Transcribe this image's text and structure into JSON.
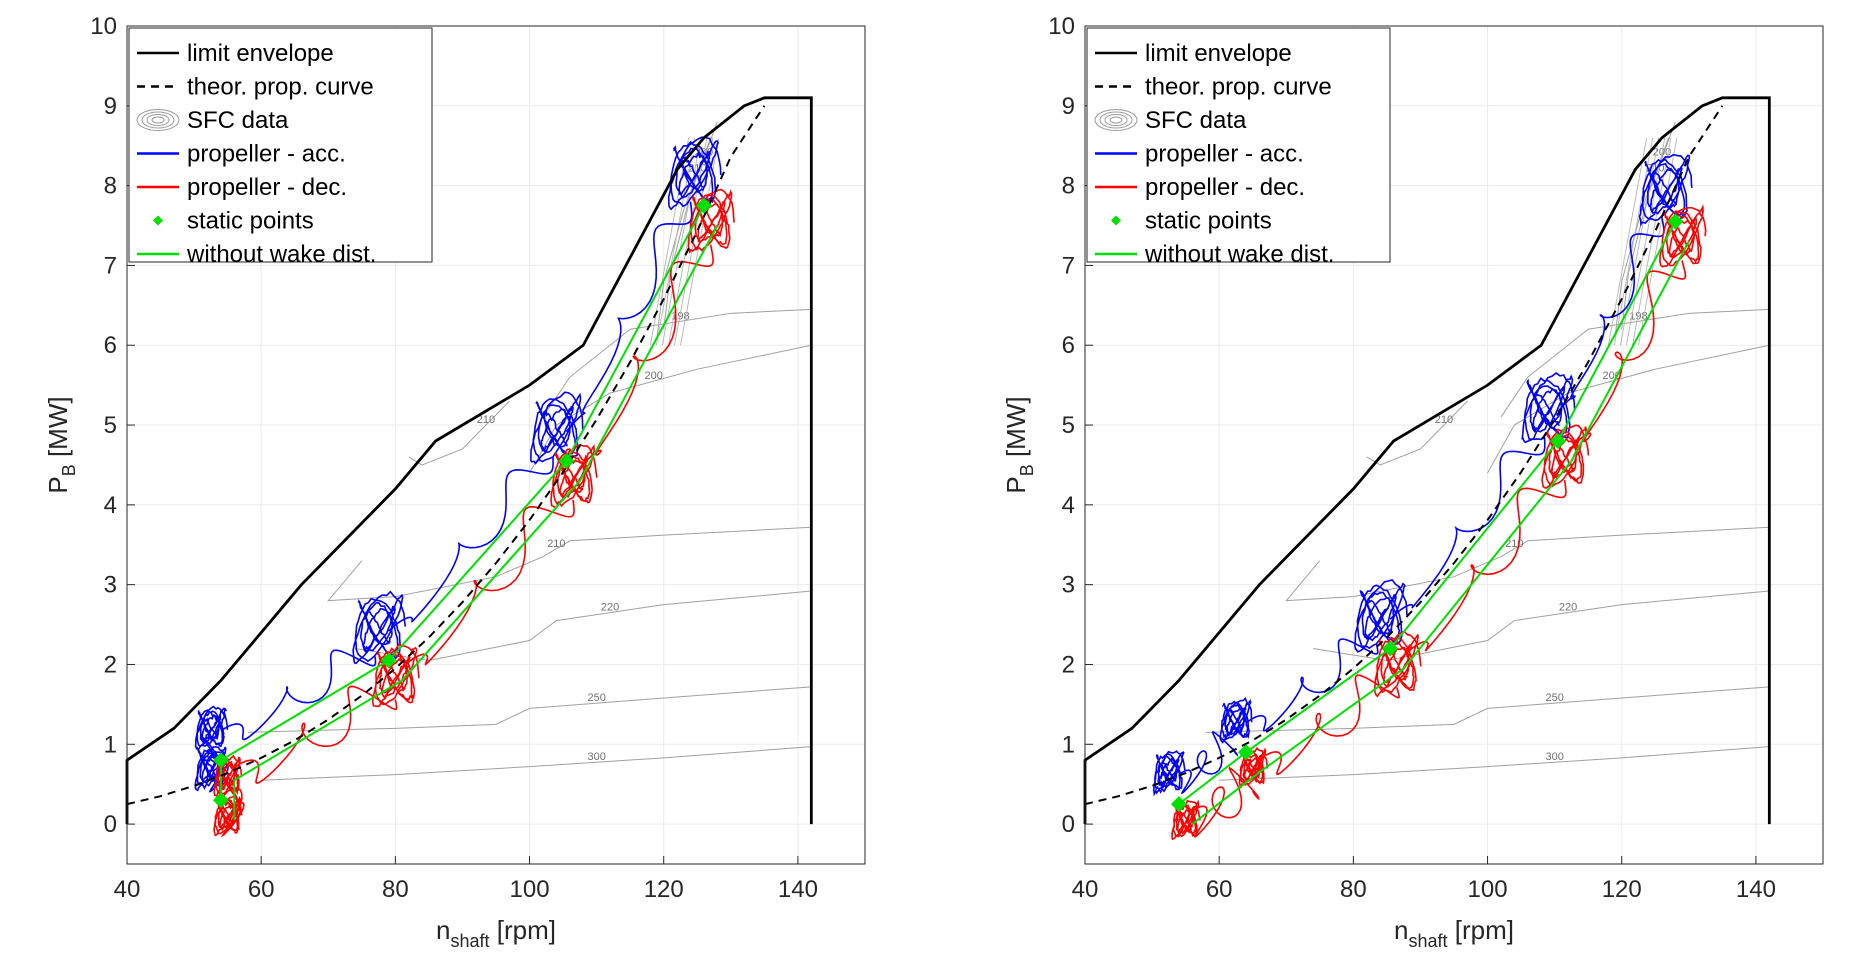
{
  "chart_data": [
    {
      "type": "line",
      "xlabel": "n",
      "xlabel_sub": "shaft",
      "xlabel_unit": "[rpm]",
      "ylabel": "P",
      "ylabel_sub": "B",
      "ylabel_unit": "[MW]",
      "xlim": [
        40,
        150
      ],
      "ylim": [
        -0.5,
        10
      ],
      "xticks": [
        40,
        60,
        80,
        100,
        120,
        140
      ],
      "yticks": [
        0,
        1,
        2,
        3,
        4,
        5,
        6,
        7,
        8,
        9,
        10
      ],
      "grid": true,
      "legend_position": "top-left",
      "legend": [
        {
          "label": "limit envelope",
          "style": "solid",
          "color": "#000000"
        },
        {
          "label": "theor. prop. curve",
          "style": "dashed",
          "color": "#000000"
        },
        {
          "label": "SFC data",
          "style": "contour",
          "color": "#9a9a9a"
        },
        {
          "label": "propeller - acc.",
          "style": "solid",
          "color": "#0000ff"
        },
        {
          "label": "propeller - dec.",
          "style": "solid",
          "color": "#ff0000"
        },
        {
          "label": "static points",
          "style": "marker",
          "color": "#00e000"
        },
        {
          "label": "without wake dist.",
          "style": "solid",
          "color": "#00e000"
        }
      ],
      "limit_envelope": {
        "x": [
          40,
          40,
          47,
          54,
          60,
          66,
          73,
          80,
          86,
          100,
          108,
          122,
          126,
          132,
          135,
          142,
          142
        ],
        "y": [
          0,
          0.8,
          1.2,
          1.8,
          2.4,
          3.0,
          3.6,
          4.2,
          4.8,
          5.5,
          6.0,
          8.2,
          8.6,
          9.0,
          9.1,
          9.1,
          0
        ]
      },
      "prop_curve": {
        "x": [
          40,
          45,
          50,
          55,
          60,
          65,
          70,
          75,
          80,
          85,
          90,
          95,
          100,
          105,
          110,
          115,
          120,
          125,
          130,
          135
        ],
        "y": [
          0.25,
          0.35,
          0.48,
          0.64,
          0.83,
          1.05,
          1.31,
          1.61,
          1.95,
          2.34,
          2.78,
          3.27,
          3.81,
          4.41,
          5.07,
          5.79,
          6.58,
          7.43,
          8.36,
          9.0
        ]
      },
      "sfc_contours": [
        {
          "label": "300",
          "x": [
            60,
            80,
            100,
            120,
            142
          ],
          "y": [
            0.55,
            0.62,
            0.72,
            0.83,
            0.97
          ]
        },
        {
          "label": "250",
          "x": [
            58,
            80,
            95,
            100,
            120,
            142
          ],
          "y": [
            1.15,
            1.2,
            1.25,
            1.45,
            1.58,
            1.72
          ]
        },
        {
          "label": "220",
          "x": [
            74,
            85,
            100,
            104,
            120,
            142
          ],
          "y": [
            2.2,
            2.05,
            2.3,
            2.55,
            2.75,
            2.92
          ]
        },
        {
          "label": "210",
          "x": [
            75,
            70,
            80,
            95,
            102,
            106,
            120,
            142
          ],
          "y": [
            3.3,
            2.8,
            2.85,
            3.1,
            3.35,
            3.55,
            3.62,
            3.72
          ]
        },
        {
          "label": "200",
          "x": [
            100,
            104,
            112,
            125,
            142
          ],
          "y": [
            4.4,
            5.0,
            5.4,
            5.7,
            6.0
          ]
        },
        {
          "label": "198",
          "x": [
            102,
            106,
            115,
            130,
            142
          ],
          "y": [
            5.1,
            5.6,
            6.2,
            6.4,
            6.45
          ]
        },
        {
          "label": "210",
          "x": [
            82,
            84,
            90,
            97
          ],
          "y": [
            4.6,
            4.5,
            4.7,
            5.3
          ]
        },
        {
          "label": "200",
          "x": [
            120,
            121,
            124,
            128
          ],
          "y": [
            6.2,
            6.9,
            7.9,
            8.8
          ]
        },
        {
          "label": "210",
          "x": [
            119,
            120,
            123,
            127
          ],
          "y": [
            6.1,
            6.8,
            7.7,
            8.6
          ]
        }
      ],
      "static_points": {
        "x": [
          54,
          54,
          79,
          105.5,
          126
        ],
        "y": [
          0.3,
          0.8,
          2.05,
          4.55,
          7.75
        ]
      }
    },
    {
      "type": "line",
      "xlabel": "n",
      "xlabel_sub": "shaft",
      "xlabel_unit": "[rpm]",
      "ylabel": "P",
      "ylabel_sub": "B",
      "ylabel_unit": "[MW]",
      "xlim": [
        40,
        150
      ],
      "ylim": [
        -0.5,
        10
      ],
      "xticks": [
        40,
        60,
        80,
        100,
        120,
        140
      ],
      "yticks": [
        0,
        1,
        2,
        3,
        4,
        5,
        6,
        7,
        8,
        9,
        10
      ],
      "grid": true,
      "legend_position": "top-left",
      "legend": [
        {
          "label": "limit envelope",
          "style": "solid",
          "color": "#000000"
        },
        {
          "label": "theor. prop. curve",
          "style": "dashed",
          "color": "#000000"
        },
        {
          "label": "SFC data",
          "style": "contour",
          "color": "#9a9a9a"
        },
        {
          "label": "propeller - acc.",
          "style": "solid",
          "color": "#0000ff"
        },
        {
          "label": "propeller - dec.",
          "style": "solid",
          "color": "#ff0000"
        },
        {
          "label": "static points",
          "style": "marker",
          "color": "#00e000"
        },
        {
          "label": "without wake dist.",
          "style": "solid",
          "color": "#00e000"
        }
      ],
      "limit_envelope": {
        "x": [
          40,
          40,
          47,
          54,
          60,
          66,
          73,
          80,
          86,
          100,
          108,
          122,
          126,
          132,
          135,
          142,
          142
        ],
        "y": [
          0,
          0.8,
          1.2,
          1.8,
          2.4,
          3.0,
          3.6,
          4.2,
          4.8,
          5.5,
          6.0,
          8.2,
          8.6,
          9.0,
          9.1,
          9.1,
          0
        ]
      },
      "prop_curve": {
        "x": [
          40,
          45,
          50,
          55,
          60,
          65,
          70,
          75,
          80,
          85,
          90,
          95,
          100,
          105,
          110,
          115,
          120,
          125,
          130,
          135
        ],
        "y": [
          0.25,
          0.35,
          0.48,
          0.64,
          0.83,
          1.05,
          1.31,
          1.61,
          1.95,
          2.34,
          2.78,
          3.27,
          3.81,
          4.41,
          5.07,
          5.79,
          6.58,
          7.43,
          8.36,
          9.0
        ]
      },
      "sfc_contours": [
        {
          "label": "300",
          "x": [
            60,
            80,
            100,
            120,
            142
          ],
          "y": [
            0.55,
            0.62,
            0.72,
            0.83,
            0.97
          ]
        },
        {
          "label": "250",
          "x": [
            58,
            80,
            95,
            100,
            120,
            142
          ],
          "y": [
            1.15,
            1.2,
            1.25,
            1.45,
            1.58,
            1.72
          ]
        },
        {
          "label": "220",
          "x": [
            74,
            85,
            100,
            104,
            120,
            142
          ],
          "y": [
            2.2,
            2.05,
            2.3,
            2.55,
            2.75,
            2.92
          ]
        },
        {
          "label": "210",
          "x": [
            75,
            70,
            80,
            95,
            102,
            106,
            120,
            142
          ],
          "y": [
            3.3,
            2.8,
            2.85,
            3.1,
            3.35,
            3.55,
            3.62,
            3.72
          ]
        },
        {
          "label": "200",
          "x": [
            100,
            104,
            112,
            125,
            142
          ],
          "y": [
            4.4,
            5.0,
            5.4,
            5.7,
            6.0
          ]
        },
        {
          "label": "198",
          "x": [
            102,
            106,
            115,
            130,
            142
          ],
          "y": [
            5.1,
            5.6,
            6.2,
            6.4,
            6.45
          ]
        },
        {
          "label": "210",
          "x": [
            82,
            84,
            90,
            97
          ],
          "y": [
            4.6,
            4.5,
            4.7,
            5.3
          ]
        },
        {
          "label": "200",
          "x": [
            120,
            121,
            124,
            128
          ],
          "y": [
            6.2,
            6.9,
            7.9,
            8.8
          ]
        },
        {
          "label": "210",
          "x": [
            119,
            120,
            123,
            127
          ],
          "y": [
            6.1,
            6.8,
            7.7,
            8.6
          ]
        }
      ],
      "static_points": {
        "x": [
          54,
          64,
          85.5,
          110.5,
          128
        ],
        "y": [
          0.25,
          0.9,
          2.2,
          4.8,
          7.55
        ]
      }
    }
  ]
}
